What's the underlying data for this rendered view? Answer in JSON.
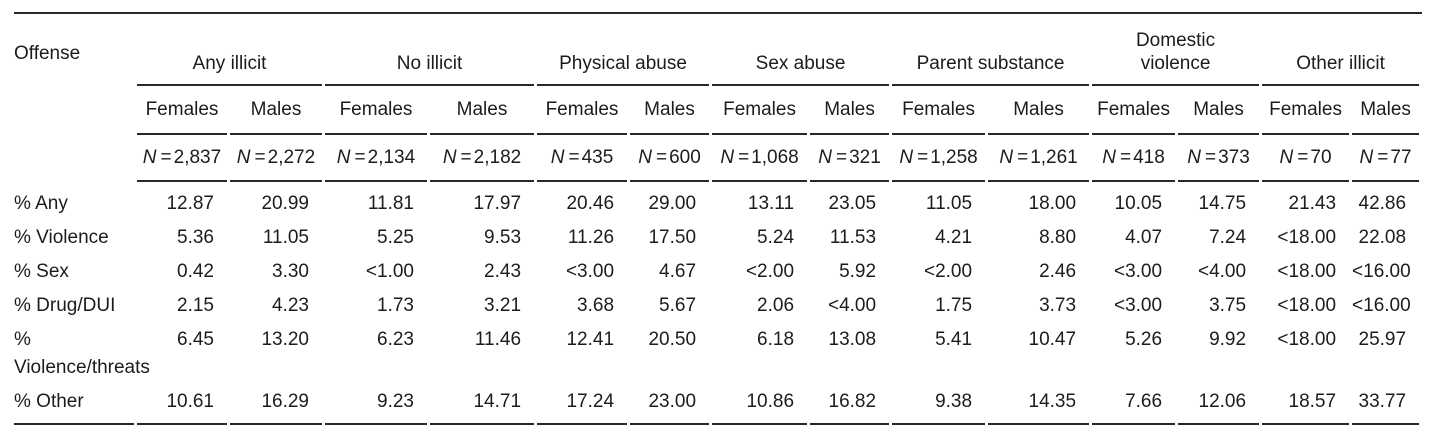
{
  "table": {
    "offense_header": "Offense",
    "n_label": "N",
    "eq": "=",
    "groups": [
      {
        "label": "Any illicit",
        "columns": [
          {
            "sex": "Females",
            "n": "2,837"
          },
          {
            "sex": "Males",
            "n": "2,272"
          }
        ]
      },
      {
        "label": "No illicit",
        "columns": [
          {
            "sex": "Females",
            "n": "2,134"
          },
          {
            "sex": "Males",
            "n": "2,182"
          }
        ]
      },
      {
        "label": "Physical abuse",
        "columns": [
          {
            "sex": "Females",
            "n": "435"
          },
          {
            "sex": "Males",
            "n": "600"
          }
        ]
      },
      {
        "label": "Sex abuse",
        "columns": [
          {
            "sex": "Females",
            "n": "1,068"
          },
          {
            "sex": "Males",
            "n": "321"
          }
        ]
      },
      {
        "label": "Parent substance",
        "columns": [
          {
            "sex": "Females",
            "n": "1,258"
          },
          {
            "sex": "Males",
            "n": "1,261"
          }
        ]
      },
      {
        "label": "Domestic violence",
        "columns": [
          {
            "sex": "Females",
            "n": "418"
          },
          {
            "sex": "Males",
            "n": "373"
          }
        ]
      },
      {
        "label": "Other illicit",
        "columns": [
          {
            "sex": "Females",
            "n": "70"
          },
          {
            "sex": "Males",
            "n": "77"
          }
        ]
      }
    ],
    "rows": [
      {
        "label": "% Any",
        "values": [
          "12.87",
          "20.99",
          "11.81",
          "17.97",
          "20.46",
          "29.00",
          "13.11",
          "23.05",
          "11.05",
          "18.00",
          "10.05",
          "14.75",
          "21.43",
          "42.86"
        ]
      },
      {
        "label": "% Violence",
        "values": [
          "5.36",
          "11.05",
          "5.25",
          "9.53",
          "11.26",
          "17.50",
          "5.24",
          "11.53",
          "4.21",
          "8.80",
          "4.07",
          "7.24",
          "<18.00",
          "22.08"
        ]
      },
      {
        "label": "% Sex",
        "values": [
          "0.42",
          "3.30",
          "<1.00",
          "2.43",
          "<3.00",
          "4.67",
          "<2.00",
          "5.92",
          "<2.00",
          "2.46",
          "<3.00",
          "<4.00",
          "<18.00",
          "<16.00"
        ]
      },
      {
        "label": "% Drug/DUI",
        "values": [
          "2.15",
          "4.23",
          "1.73",
          "3.21",
          "3.68",
          "5.67",
          "2.06",
          "<4.00",
          "1.75",
          "3.73",
          "<3.00",
          "3.75",
          "<18.00",
          "<16.00"
        ]
      },
      {
        "label": "% Violence/threats",
        "values": [
          "6.45",
          "13.20",
          "6.23",
          "11.46",
          "12.41",
          "20.50",
          "6.18",
          "13.08",
          "5.41",
          "10.47",
          "5.26",
          "9.92",
          "<18.00",
          "25.97"
        ]
      },
      {
        "label": "% Other",
        "values": [
          "10.61",
          "16.29",
          "9.23",
          "14.71",
          "17.24",
          "23.00",
          "10.86",
          "16.82",
          "9.38",
          "14.35",
          "7.66",
          "12.06",
          "18.57",
          "33.77"
        ]
      }
    ]
  }
}
